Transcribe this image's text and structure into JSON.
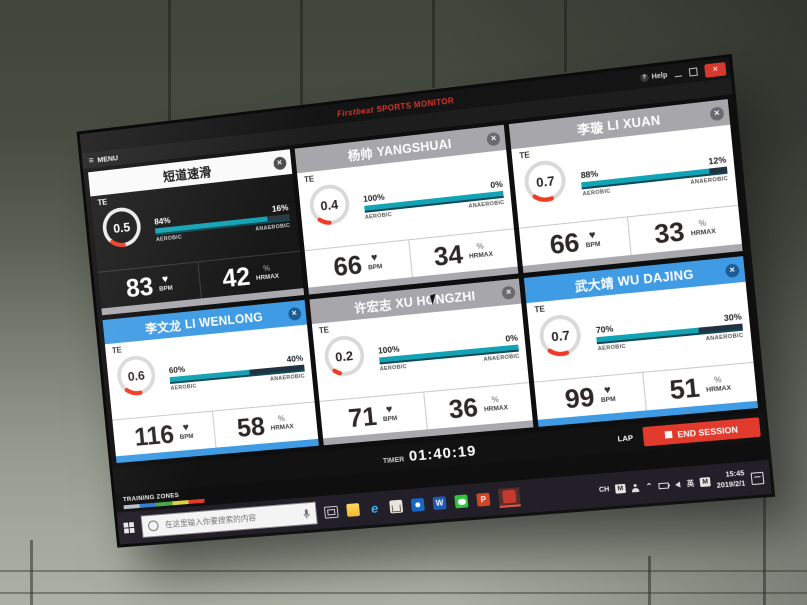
{
  "window": {
    "brand": "Firstbeat",
    "title": "SPORTS MONITOR",
    "help_label": "Help"
  },
  "menu": {
    "label": "MENU"
  },
  "labels": {
    "te": "TE",
    "aerobic": "AEROBIC",
    "anaerobic": "ANAEROBIC",
    "bpm": "BPM",
    "percent": "%",
    "hrmax": "HRMAX"
  },
  "panels": [
    {
      "name_cn": "短道速滑",
      "name_en": "",
      "te": "0.5",
      "te_arc": 11,
      "aerobic_pct": "84%",
      "anaerobic_pct": "16%",
      "aerobic_val": 84,
      "bpm": "83",
      "hrmax": "42",
      "zone_color": "#a9a9ad"
    },
    {
      "name_cn": "杨帅",
      "name_en": "YANGSHUAI",
      "te": "0.4",
      "te_arc": 9,
      "aerobic_pct": "100%",
      "anaerobic_pct": "0%",
      "aerobic_val": 100,
      "bpm": "66",
      "hrmax": "34",
      "zone_color": "#a9a9ad"
    },
    {
      "name_cn": "李璇",
      "name_en": "LI XUAN",
      "te": "0.7",
      "te_arc": 15,
      "aerobic_pct": "88%",
      "anaerobic_pct": "12%",
      "aerobic_val": 88,
      "bpm": "66",
      "hrmax": "33",
      "zone_color": "#a9a9ad"
    },
    {
      "name_cn": "李文龙",
      "name_en": "LI WENLONG",
      "te": "0.6",
      "te_arc": 13,
      "aerobic_pct": "60%",
      "anaerobic_pct": "40%",
      "aerobic_val": 60,
      "bpm": "116",
      "hrmax": "58",
      "zone_color": "#3f9be4"
    },
    {
      "name_cn": "许宏志",
      "name_en": "XU HONGZHI",
      "te": "0.2",
      "te_arc": 5,
      "aerobic_pct": "100%",
      "anaerobic_pct": "0%",
      "aerobic_val": 100,
      "bpm": "71",
      "hrmax": "36",
      "zone_color": "#a9a9ad"
    },
    {
      "name_cn": "武大靖",
      "name_en": "WU DAJING",
      "te": "0.7",
      "te_arc": 15,
      "aerobic_pct": "70%",
      "anaerobic_pct": "30%",
      "aerobic_val": 70,
      "bpm": "99",
      "hrmax": "51",
      "zone_color": "#3f9be4"
    }
  ],
  "bottom_bar": {
    "timer_label": "TIMER",
    "timer_value": "01:40:19",
    "lap_label": "LAP",
    "end_session_label": "END SESSION"
  },
  "zones_bar": {
    "label": "TRAINING ZONES",
    "colors": [
      "#b9c0c7",
      "#2f7cd6",
      "#4ca64c",
      "#d9d43e",
      "#e23b2e"
    ]
  },
  "taskbar": {
    "search_placeholder": "在这里输入你要搜索的内容",
    "icons": {
      "edge": "e",
      "word": "W",
      "ppt": "P"
    },
    "tray": {
      "ime": "CH",
      "m1": "M",
      "lang": "英",
      "m2": "M"
    },
    "time": "15:45",
    "date": "2019/2/1"
  },
  "colors": {
    "accent_red": "#e23a2c",
    "aerobic_teal": "#12a3b4",
    "header_blue": "#3f9be4"
  }
}
